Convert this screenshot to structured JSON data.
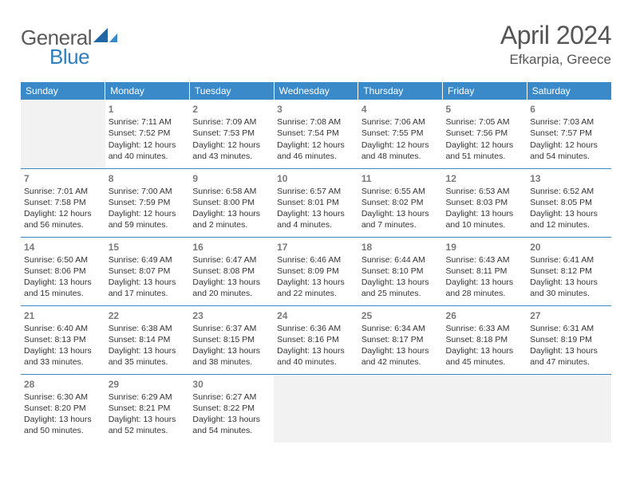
{
  "logo": {
    "word1": "General",
    "word2": "Blue"
  },
  "title": {
    "month": "April 2024",
    "location": "Efkarpia, Greece"
  },
  "colors": {
    "header_bg": "#3a8ac9",
    "header_text": "#ffffff",
    "divider": "#3a8ac9",
    "blank_bg": "#f2f2f2",
    "text": "#333333",
    "daynum": "#7a7a7a"
  },
  "weekdays": [
    "Sunday",
    "Monday",
    "Tuesday",
    "Wednesday",
    "Thursday",
    "Friday",
    "Saturday"
  ],
  "weeks": [
    [
      {
        "blank": true
      },
      {
        "n": "1",
        "sr": "Sunrise: 7:11 AM",
        "ss": "Sunset: 7:52 PM",
        "d1": "Daylight: 12 hours",
        "d2": "and 40 minutes."
      },
      {
        "n": "2",
        "sr": "Sunrise: 7:09 AM",
        "ss": "Sunset: 7:53 PM",
        "d1": "Daylight: 12 hours",
        "d2": "and 43 minutes."
      },
      {
        "n": "3",
        "sr": "Sunrise: 7:08 AM",
        "ss": "Sunset: 7:54 PM",
        "d1": "Daylight: 12 hours",
        "d2": "and 46 minutes."
      },
      {
        "n": "4",
        "sr": "Sunrise: 7:06 AM",
        "ss": "Sunset: 7:55 PM",
        "d1": "Daylight: 12 hours",
        "d2": "and 48 minutes."
      },
      {
        "n": "5",
        "sr": "Sunrise: 7:05 AM",
        "ss": "Sunset: 7:56 PM",
        "d1": "Daylight: 12 hours",
        "d2": "and 51 minutes."
      },
      {
        "n": "6",
        "sr": "Sunrise: 7:03 AM",
        "ss": "Sunset: 7:57 PM",
        "d1": "Daylight: 12 hours",
        "d2": "and 54 minutes."
      }
    ],
    [
      {
        "n": "7",
        "sr": "Sunrise: 7:01 AM",
        "ss": "Sunset: 7:58 PM",
        "d1": "Daylight: 12 hours",
        "d2": "and 56 minutes."
      },
      {
        "n": "8",
        "sr": "Sunrise: 7:00 AM",
        "ss": "Sunset: 7:59 PM",
        "d1": "Daylight: 12 hours",
        "d2": "and 59 minutes."
      },
      {
        "n": "9",
        "sr": "Sunrise: 6:58 AM",
        "ss": "Sunset: 8:00 PM",
        "d1": "Daylight: 13 hours",
        "d2": "and 2 minutes."
      },
      {
        "n": "10",
        "sr": "Sunrise: 6:57 AM",
        "ss": "Sunset: 8:01 PM",
        "d1": "Daylight: 13 hours",
        "d2": "and 4 minutes."
      },
      {
        "n": "11",
        "sr": "Sunrise: 6:55 AM",
        "ss": "Sunset: 8:02 PM",
        "d1": "Daylight: 13 hours",
        "d2": "and 7 minutes."
      },
      {
        "n": "12",
        "sr": "Sunrise: 6:53 AM",
        "ss": "Sunset: 8:03 PM",
        "d1": "Daylight: 13 hours",
        "d2": "and 10 minutes."
      },
      {
        "n": "13",
        "sr": "Sunrise: 6:52 AM",
        "ss": "Sunset: 8:05 PM",
        "d1": "Daylight: 13 hours",
        "d2": "and 12 minutes."
      }
    ],
    [
      {
        "n": "14",
        "sr": "Sunrise: 6:50 AM",
        "ss": "Sunset: 8:06 PM",
        "d1": "Daylight: 13 hours",
        "d2": "and 15 minutes."
      },
      {
        "n": "15",
        "sr": "Sunrise: 6:49 AM",
        "ss": "Sunset: 8:07 PM",
        "d1": "Daylight: 13 hours",
        "d2": "and 17 minutes."
      },
      {
        "n": "16",
        "sr": "Sunrise: 6:47 AM",
        "ss": "Sunset: 8:08 PM",
        "d1": "Daylight: 13 hours",
        "d2": "and 20 minutes."
      },
      {
        "n": "17",
        "sr": "Sunrise: 6:46 AM",
        "ss": "Sunset: 8:09 PM",
        "d1": "Daylight: 13 hours",
        "d2": "and 22 minutes."
      },
      {
        "n": "18",
        "sr": "Sunrise: 6:44 AM",
        "ss": "Sunset: 8:10 PM",
        "d1": "Daylight: 13 hours",
        "d2": "and 25 minutes."
      },
      {
        "n": "19",
        "sr": "Sunrise: 6:43 AM",
        "ss": "Sunset: 8:11 PM",
        "d1": "Daylight: 13 hours",
        "d2": "and 28 minutes."
      },
      {
        "n": "20",
        "sr": "Sunrise: 6:41 AM",
        "ss": "Sunset: 8:12 PM",
        "d1": "Daylight: 13 hours",
        "d2": "and 30 minutes."
      }
    ],
    [
      {
        "n": "21",
        "sr": "Sunrise: 6:40 AM",
        "ss": "Sunset: 8:13 PM",
        "d1": "Daylight: 13 hours",
        "d2": "and 33 minutes."
      },
      {
        "n": "22",
        "sr": "Sunrise: 6:38 AM",
        "ss": "Sunset: 8:14 PM",
        "d1": "Daylight: 13 hours",
        "d2": "and 35 minutes."
      },
      {
        "n": "23",
        "sr": "Sunrise: 6:37 AM",
        "ss": "Sunset: 8:15 PM",
        "d1": "Daylight: 13 hours",
        "d2": "and 38 minutes."
      },
      {
        "n": "24",
        "sr": "Sunrise: 6:36 AM",
        "ss": "Sunset: 8:16 PM",
        "d1": "Daylight: 13 hours",
        "d2": "and 40 minutes."
      },
      {
        "n": "25",
        "sr": "Sunrise: 6:34 AM",
        "ss": "Sunset: 8:17 PM",
        "d1": "Daylight: 13 hours",
        "d2": "and 42 minutes."
      },
      {
        "n": "26",
        "sr": "Sunrise: 6:33 AM",
        "ss": "Sunset: 8:18 PM",
        "d1": "Daylight: 13 hours",
        "d2": "and 45 minutes."
      },
      {
        "n": "27",
        "sr": "Sunrise: 6:31 AM",
        "ss": "Sunset: 8:19 PM",
        "d1": "Daylight: 13 hours",
        "d2": "and 47 minutes."
      }
    ],
    [
      {
        "n": "28",
        "sr": "Sunrise: 6:30 AM",
        "ss": "Sunset: 8:20 PM",
        "d1": "Daylight: 13 hours",
        "d2": "and 50 minutes."
      },
      {
        "n": "29",
        "sr": "Sunrise: 6:29 AM",
        "ss": "Sunset: 8:21 PM",
        "d1": "Daylight: 13 hours",
        "d2": "and 52 minutes."
      },
      {
        "n": "30",
        "sr": "Sunrise: 6:27 AM",
        "ss": "Sunset: 8:22 PM",
        "d1": "Daylight: 13 hours",
        "d2": "and 54 minutes."
      },
      {
        "blank": true
      },
      {
        "blank": true
      },
      {
        "blank": true
      },
      {
        "blank": true
      }
    ]
  ]
}
